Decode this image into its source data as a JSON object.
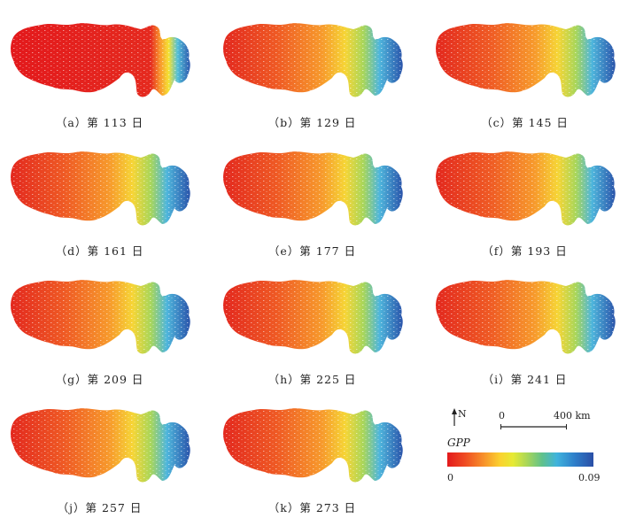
{
  "panels": [
    {
      "caption": "（a）第 113 日",
      "gpp": "very-low-east"
    },
    {
      "caption": "（b）第 129 日",
      "gpp": "mixed"
    },
    {
      "caption": "（c）第 145 日",
      "gpp": "mixed"
    },
    {
      "caption": "（d）第 161 日",
      "gpp": "mixed"
    },
    {
      "caption": "（e）第 177 日",
      "gpp": "mixed"
    },
    {
      "caption": "（f）第 193 日",
      "gpp": "mixed"
    },
    {
      "caption": "（g）第 209 日",
      "gpp": "mixed"
    },
    {
      "caption": "（h）第 225 日",
      "gpp": "mixed"
    },
    {
      "caption": "（i）第 241 日",
      "gpp": "mixed"
    },
    {
      "caption": "（j）第 257 日",
      "gpp": "mixed"
    },
    {
      "caption": "（k）第 273 日",
      "gpp": "mixed"
    }
  ],
  "legend": {
    "north": "N",
    "scale_min": "0",
    "scale_max": "400 km",
    "title": "GPP",
    "min": "0",
    "max": "0.09",
    "colors": [
      "#e3191c",
      "#f78c2a",
      "#fbd12f",
      "#a6d65a",
      "#3fb3dd",
      "#2a4ea6"
    ]
  }
}
